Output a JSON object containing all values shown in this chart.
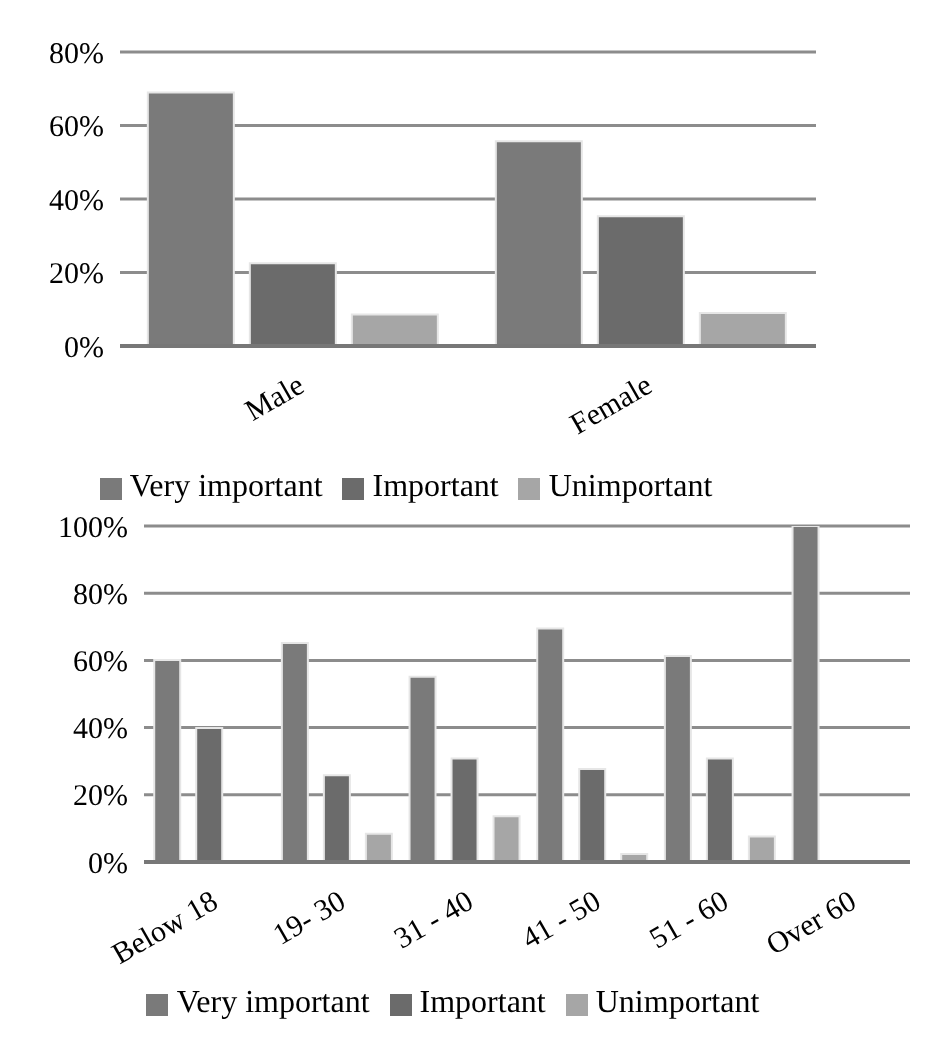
{
  "chart_data": [
    {
      "type": "bar",
      "categories": [
        "Male",
        "Female"
      ],
      "series": [
        {
          "name": "Very important",
          "color": "#7a7a7a",
          "values": [
            69,
            55.7
          ]
        },
        {
          "name": "Important",
          "color": "#6b6b6b",
          "values": [
            22.5,
            35.3
          ]
        },
        {
          "name": "Unimportant",
          "color": "#a6a6a6",
          "values": [
            8.6,
            9
          ]
        }
      ],
      "ylim": [
        0,
        80
      ],
      "yticks": [
        {
          "value": 0,
          "label": "0%"
        },
        {
          "value": 20,
          "label": "20%"
        },
        {
          "value": 40,
          "label": "40%"
        },
        {
          "value": 60,
          "label": "60%"
        },
        {
          "value": 80,
          "label": "80%"
        }
      ],
      "grid": "y",
      "legend": "bottom"
    },
    {
      "type": "bar",
      "categories": [
        "Below 18",
        "19- 30",
        "31 - 40",
        "41 - 50",
        "51 - 60",
        "Over 60"
      ],
      "series": [
        {
          "name": "Very important",
          "color": "#7a7a7a",
          "values": [
            60.1,
            65.2,
            55.1,
            69.5,
            61.3,
            100
          ]
        },
        {
          "name": "Important",
          "color": "#6b6b6b",
          "values": [
            39.9,
            25.8,
            30.8,
            27.7,
            30.8,
            0
          ]
        },
        {
          "name": "Unimportant",
          "color": "#a6a6a6",
          "values": [
            0,
            8.4,
            13.6,
            2.4,
            7.6,
            0
          ]
        }
      ],
      "ylim": [
        0,
        100
      ],
      "yticks": [
        {
          "value": 0,
          "label": "0%"
        },
        {
          "value": 20,
          "label": "20%"
        },
        {
          "value": 40,
          "label": "40%"
        },
        {
          "value": 60,
          "label": "60%"
        },
        {
          "value": 80,
          "label": "80%"
        },
        {
          "value": 100,
          "label": "100%"
        }
      ],
      "grid": "y",
      "legend": "bottom"
    }
  ]
}
